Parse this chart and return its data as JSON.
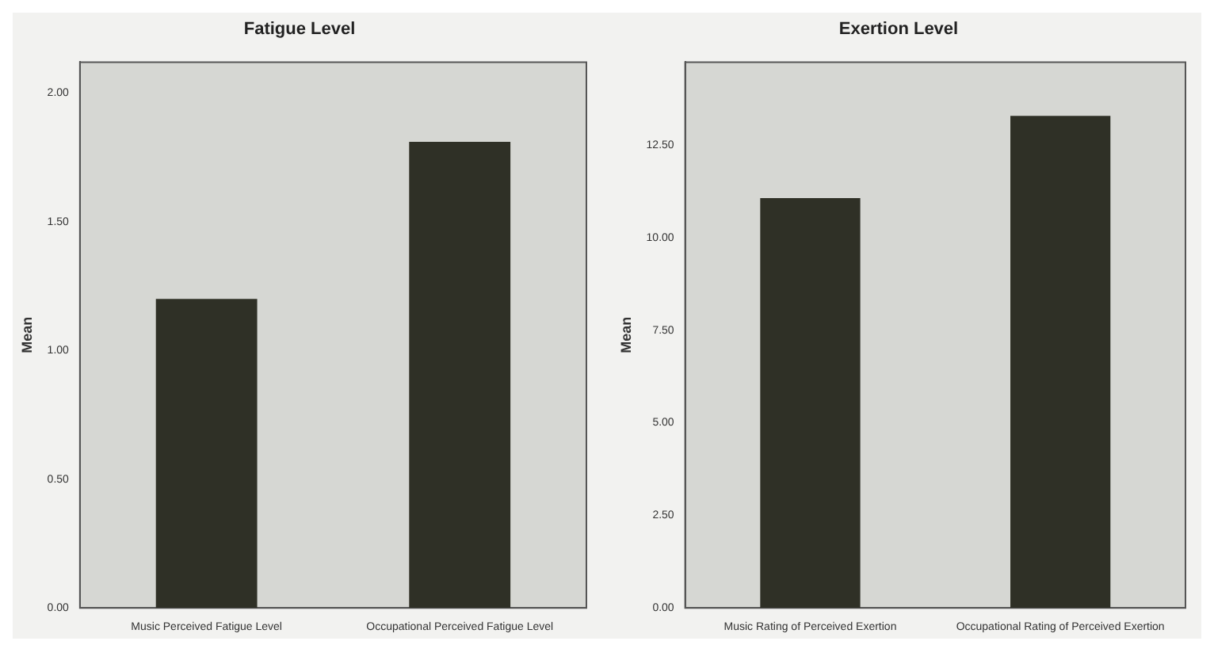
{
  "chart_data": [
    {
      "type": "bar",
      "title": "Fatigue Level",
      "ylabel": "Mean",
      "categories": [
        "Music Perceived Fatigue Level",
        "Occupational Perceived Fatigue Level"
      ],
      "values": [
        1.2,
        1.81
      ],
      "color": "#2f3026",
      "ylim": [
        0,
        2.12
      ],
      "yticks": [
        {
          "value": 0,
          "label": "0.00"
        },
        {
          "value": 0.5,
          "label": "0.50"
        },
        {
          "value": 1,
          "label": "1.00"
        },
        {
          "value": 1.5,
          "label": "1.50"
        },
        {
          "value": 2,
          "label": "2.00"
        }
      ],
      "grid": false
    },
    {
      "type": "bar",
      "title": "Exertion Level",
      "ylabel": "Mean",
      "categories": [
        "Music Rating of Perceived Exertion",
        "Occupational Rating of Perceived Exertion"
      ],
      "values": [
        11.07,
        13.29
      ],
      "color": "#2f3026",
      "ylim": [
        0,
        14.74
      ],
      "yticks": [
        {
          "value": 0,
          "label": "0.00"
        },
        {
          "value": 2.5,
          "label": "2.50"
        },
        {
          "value": 5,
          "label": "5.00"
        },
        {
          "value": 7.5,
          "label": "7.50"
        },
        {
          "value": 10,
          "label": "10.00"
        },
        {
          "value": 12.5,
          "label": "12.50"
        }
      ],
      "grid": false
    }
  ]
}
